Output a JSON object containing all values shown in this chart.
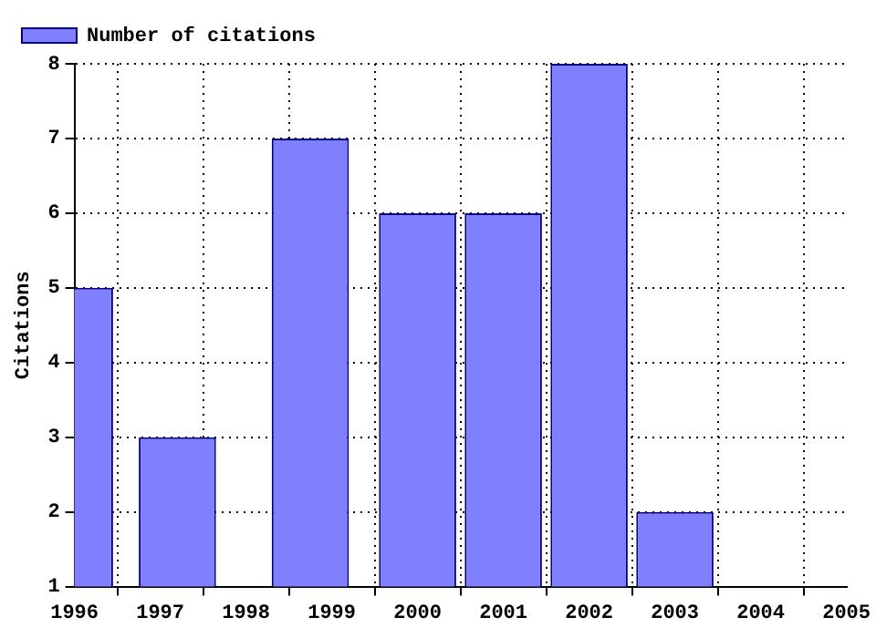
{
  "chart_data": {
    "type": "bar",
    "ylabel": "Citations",
    "x": [
      1996,
      1997.2,
      1998.75,
      2000,
      2001,
      2002,
      2003
    ],
    "series": [
      {
        "name": "Number of citations",
        "color": "#8080ff",
        "values": [
          5,
          3,
          7,
          6,
          6,
          8,
          2
        ]
      }
    ],
    "xlim": [
      1996,
      2005
    ],
    "xticks": [
      1996,
      1997,
      1998,
      1999,
      2000,
      2001,
      2002,
      2003,
      2004,
      2005
    ],
    "ylim": [
      1,
      8
    ],
    "yticks": [
      1,
      2,
      3,
      4,
      5,
      6,
      7,
      8
    ],
    "grid": true,
    "legend": "top left"
  }
}
